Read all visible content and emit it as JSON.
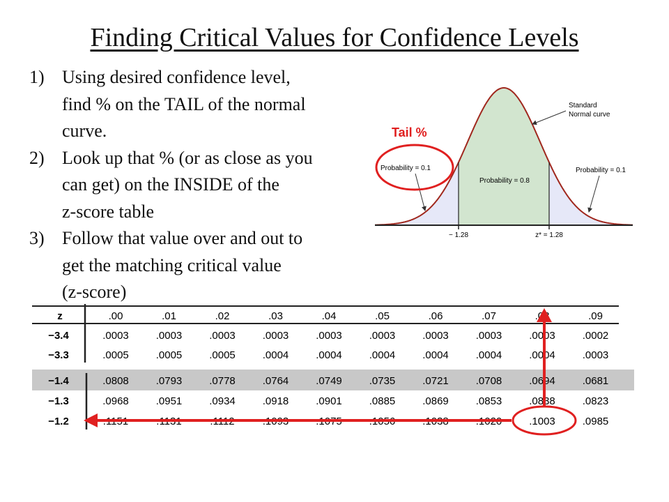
{
  "slide": {
    "title": "Finding Critical Values for Confidence Levels",
    "steps": [
      {
        "num": "1)",
        "lines": [
          "Using desired confidence level,",
          "find % on the TAIL of the normal",
          "curve."
        ]
      },
      {
        "num": "2)",
        "lines": [
          "Look up that % (or as close as you",
          "can get) on the INSIDE of the",
          "z-score table"
        ]
      },
      {
        "num": "3)",
        "lines": [
          "Follow that value over and out to",
          "get the matching critical value",
          "(z-score)"
        ]
      }
    ]
  },
  "figure": {
    "tail_label": "Tail %",
    "left_prob": "Probability = 0.1",
    "center_prob": "Probability = 0.8",
    "right_prob": "Probability = 0.1",
    "curve_label_1": "Standard",
    "curve_label_2": "Normal curve",
    "left_z": "− 1.28",
    "right_z": "z* = 1.28",
    "colors": {
      "center_fill": "#d2e5cf",
      "tail_fill": "#e6e8f8",
      "highlight": "#e02020"
    }
  },
  "table": {
    "corner": "z",
    "columns": [
      ".00",
      ".01",
      ".02",
      ".03",
      ".04",
      ".05",
      ".06",
      ".07",
      ".08",
      ".09"
    ],
    "top_rows": [
      {
        "z": "−3.4",
        "values": [
          ".0003",
          ".0003",
          ".0003",
          ".0003",
          ".0003",
          ".0003",
          ".0003",
          ".0003",
          ".0003",
          ".0002"
        ]
      },
      {
        "z": "−3.3",
        "values": [
          ".0005",
          ".0005",
          ".0005",
          ".0004",
          ".0004",
          ".0004",
          ".0004",
          ".0004",
          ".0004",
          ".0003"
        ]
      }
    ],
    "bottom_rows": [
      {
        "z": "−1.4",
        "values": [
          ".0808",
          ".0793",
          ".0778",
          ".0764",
          ".0749",
          ".0735",
          ".0721",
          ".0708",
          ".0694",
          ".0681"
        ]
      },
      {
        "z": "−1.3",
        "values": [
          ".0968",
          ".0951",
          ".0934",
          ".0918",
          ".0901",
          ".0885",
          ".0869",
          ".0853",
          ".0838",
          ".0823"
        ]
      },
      {
        "z": "−1.2",
        "values": [
          ".1151",
          ".1131",
          ".1112",
          ".1093",
          ".1075",
          ".1056",
          ".1038",
          ".1020",
          ".1003",
          ".0985"
        ]
      }
    ],
    "highlight_value": ".1003",
    "colors": {
      "shaded_row": "#c8c8c8",
      "arrow": "#e02020"
    }
  }
}
